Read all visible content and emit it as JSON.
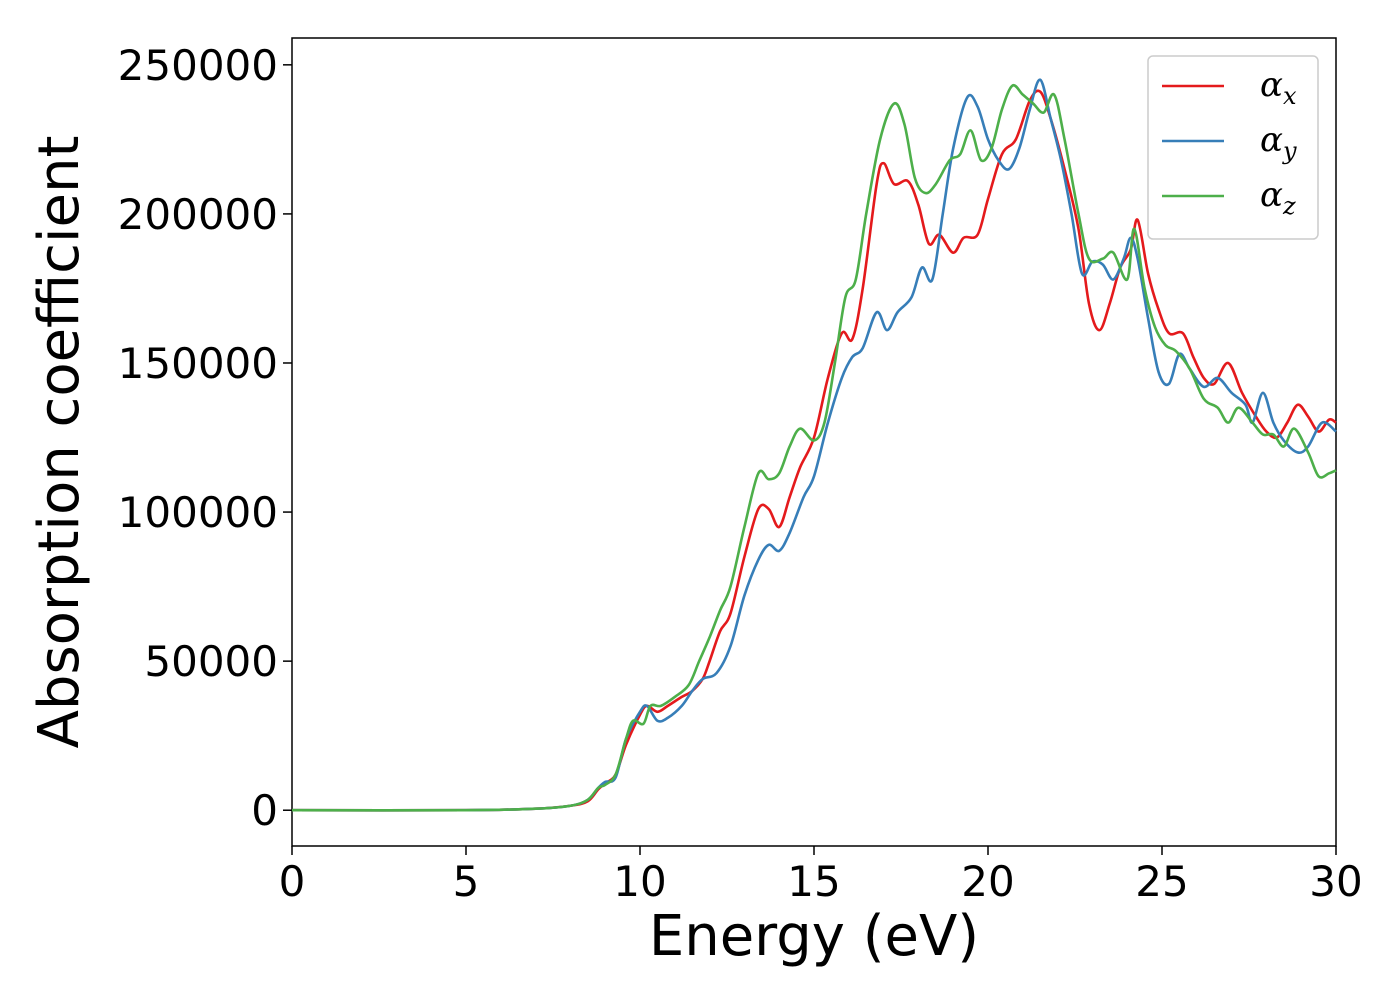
{
  "chart_data": {
    "type": "line",
    "title": "",
    "xlabel": "Energy (eV)",
    "ylabel": "Absorption coefficient",
    "xlim": [
      0,
      30
    ],
    "ylim": [
      -12000,
      259000
    ],
    "xticks": [
      0,
      5,
      10,
      15,
      20,
      25,
      30
    ],
    "yticks": [
      0,
      50000,
      100000,
      150000,
      200000,
      250000
    ],
    "grid": false,
    "legend_position": "top-right",
    "series": [
      {
        "name": "α",
        "subscript": "x",
        "color": "#e41a1c",
        "points": [
          [
            0,
            0
          ],
          [
            5,
            0
          ],
          [
            7,
            500
          ],
          [
            8,
            1500
          ],
          [
            8.5,
            3000
          ],
          [
            8.8,
            7000
          ],
          [
            9.0,
            9000
          ],
          [
            9.3,
            12000
          ],
          [
            9.6,
            22000
          ],
          [
            10.0,
            32000
          ],
          [
            10.2,
            35000
          ],
          [
            10.5,
            33000
          ],
          [
            10.8,
            35000
          ],
          [
            11.2,
            38000
          ],
          [
            11.5,
            40000
          ],
          [
            11.8,
            44000
          ],
          [
            12.0,
            50000
          ],
          [
            12.3,
            60000
          ],
          [
            12.6,
            66000
          ],
          [
            13.0,
            85000
          ],
          [
            13.4,
            101000
          ],
          [
            13.7,
            101000
          ],
          [
            14.0,
            95000
          ],
          [
            14.3,
            105000
          ],
          [
            14.6,
            115000
          ],
          [
            15.0,
            125000
          ],
          [
            15.4,
            145000
          ],
          [
            15.8,
            160000
          ],
          [
            16.1,
            158000
          ],
          [
            16.4,
            175000
          ],
          [
            16.8,
            210000
          ],
          [
            17.0,
            217000
          ],
          [
            17.3,
            210000
          ],
          [
            17.7,
            211000
          ],
          [
            18.0,
            203000
          ],
          [
            18.3,
            190000
          ],
          [
            18.6,
            193000
          ],
          [
            19.0,
            187000
          ],
          [
            19.3,
            192000
          ],
          [
            19.7,
            193000
          ],
          [
            20.0,
            205000
          ],
          [
            20.4,
            220000
          ],
          [
            20.8,
            225000
          ],
          [
            21.2,
            238000
          ],
          [
            21.5,
            241000
          ],
          [
            21.8,
            232000
          ],
          [
            22.2,
            215000
          ],
          [
            22.6,
            195000
          ],
          [
            22.9,
            170000
          ],
          [
            23.2,
            161000
          ],
          [
            23.5,
            170000
          ],
          [
            23.8,
            182000
          ],
          [
            24.1,
            188000
          ],
          [
            24.3,
            198000
          ],
          [
            24.6,
            180000
          ],
          [
            24.9,
            168000
          ],
          [
            25.2,
            160000
          ],
          [
            25.6,
            160000
          ],
          [
            25.9,
            152000
          ],
          [
            26.2,
            145000
          ],
          [
            26.5,
            143000
          ],
          [
            26.9,
            150000
          ],
          [
            27.3,
            140000
          ],
          [
            27.7,
            132000
          ],
          [
            28.0,
            127000
          ],
          [
            28.3,
            125000
          ],
          [
            28.6,
            130000
          ],
          [
            28.9,
            136000
          ],
          [
            29.2,
            132000
          ],
          [
            29.5,
            127000
          ],
          [
            29.8,
            131000
          ],
          [
            30.0,
            130000
          ]
        ]
      },
      {
        "name": "α",
        "subscript": "y",
        "color": "#377eb8",
        "points": [
          [
            0,
            0
          ],
          [
            5,
            0
          ],
          [
            7,
            500
          ],
          [
            8,
            1500
          ],
          [
            8.5,
            3500
          ],
          [
            8.8,
            7500
          ],
          [
            9.0,
            9500
          ],
          [
            9.3,
            11000
          ],
          [
            9.6,
            24000
          ],
          [
            10.0,
            33000
          ],
          [
            10.2,
            35000
          ],
          [
            10.5,
            30000
          ],
          [
            10.8,
            31000
          ],
          [
            11.2,
            35000
          ],
          [
            11.5,
            40000
          ],
          [
            11.8,
            44000
          ],
          [
            12.2,
            46000
          ],
          [
            12.6,
            55000
          ],
          [
            13.0,
            72000
          ],
          [
            13.4,
            84000
          ],
          [
            13.7,
            89000
          ],
          [
            14.0,
            87000
          ],
          [
            14.3,
            93000
          ],
          [
            14.7,
            105000
          ],
          [
            15.0,
            112000
          ],
          [
            15.4,
            130000
          ],
          [
            15.8,
            145000
          ],
          [
            16.1,
            152000
          ],
          [
            16.4,
            155000
          ],
          [
            16.8,
            167000
          ],
          [
            17.1,
            161000
          ],
          [
            17.4,
            167000
          ],
          [
            17.8,
            172000
          ],
          [
            18.1,
            182000
          ],
          [
            18.4,
            178000
          ],
          [
            18.7,
            200000
          ],
          [
            19.0,
            222000
          ],
          [
            19.4,
            239000
          ],
          [
            19.7,
            236000
          ],
          [
            20.0,
            225000
          ],
          [
            20.3,
            218000
          ],
          [
            20.6,
            215000
          ],
          [
            20.9,
            222000
          ],
          [
            21.2,
            235000
          ],
          [
            21.5,
            245000
          ],
          [
            21.8,
            232000
          ],
          [
            22.1,
            218000
          ],
          [
            22.4,
            200000
          ],
          [
            22.7,
            180000
          ],
          [
            23.0,
            184000
          ],
          [
            23.3,
            183000
          ],
          [
            23.6,
            178000
          ],
          [
            23.9,
            185000
          ],
          [
            24.1,
            192000
          ],
          [
            24.3,
            185000
          ],
          [
            24.6,
            165000
          ],
          [
            24.9,
            147000
          ],
          [
            25.2,
            143000
          ],
          [
            25.5,
            153000
          ],
          [
            25.8,
            148000
          ],
          [
            26.2,
            142000
          ],
          [
            26.6,
            145000
          ],
          [
            27.0,
            140000
          ],
          [
            27.4,
            136000
          ],
          [
            27.6,
            130000
          ],
          [
            27.9,
            140000
          ],
          [
            28.2,
            130000
          ],
          [
            28.5,
            124000
          ],
          [
            28.9,
            120000
          ],
          [
            29.2,
            122000
          ],
          [
            29.6,
            130000
          ],
          [
            30.0,
            127000
          ]
        ]
      },
      {
        "name": "α",
        "subscript": "z",
        "color": "#4daf4a",
        "points": [
          [
            0,
            0
          ],
          [
            5,
            0
          ],
          [
            7,
            500
          ],
          [
            8,
            1500
          ],
          [
            8.5,
            3500
          ],
          [
            8.8,
            7500
          ],
          [
            9.0,
            8500
          ],
          [
            9.3,
            12000
          ],
          [
            9.6,
            24000
          ],
          [
            9.8,
            30000
          ],
          [
            10.1,
            29000
          ],
          [
            10.3,
            35000
          ],
          [
            10.6,
            35000
          ],
          [
            11.0,
            38000
          ],
          [
            11.4,
            42000
          ],
          [
            11.7,
            50000
          ],
          [
            12.0,
            58000
          ],
          [
            12.3,
            67000
          ],
          [
            12.6,
            75000
          ],
          [
            13.0,
            95000
          ],
          [
            13.4,
            113000
          ],
          [
            13.7,
            111000
          ],
          [
            14.0,
            113000
          ],
          [
            14.3,
            122000
          ],
          [
            14.6,
            128000
          ],
          [
            15.0,
            124000
          ],
          [
            15.3,
            130000
          ],
          [
            15.6,
            150000
          ],
          [
            15.9,
            172000
          ],
          [
            16.2,
            178000
          ],
          [
            16.5,
            200000
          ],
          [
            16.9,
            225000
          ],
          [
            17.3,
            237000
          ],
          [
            17.6,
            230000
          ],
          [
            17.9,
            212000
          ],
          [
            18.2,
            207000
          ],
          [
            18.5,
            210000
          ],
          [
            18.9,
            218000
          ],
          [
            19.2,
            220000
          ],
          [
            19.5,
            228000
          ],
          [
            19.8,
            218000
          ],
          [
            20.1,
            222000
          ],
          [
            20.4,
            235000
          ],
          [
            20.7,
            243000
          ],
          [
            21.0,
            240000
          ],
          [
            21.3,
            237000
          ],
          [
            21.6,
            234000
          ],
          [
            21.9,
            240000
          ],
          [
            22.2,
            225000
          ],
          [
            22.6,
            200000
          ],
          [
            22.9,
            185000
          ],
          [
            23.3,
            185000
          ],
          [
            23.6,
            187000
          ],
          [
            24.0,
            178000
          ],
          [
            24.2,
            195000
          ],
          [
            24.5,
            175000
          ],
          [
            24.8,
            162000
          ],
          [
            25.1,
            156000
          ],
          [
            25.4,
            154000
          ],
          [
            25.8,
            148000
          ],
          [
            26.2,
            138000
          ],
          [
            26.6,
            135000
          ],
          [
            26.9,
            130000
          ],
          [
            27.2,
            135000
          ],
          [
            27.6,
            130000
          ],
          [
            27.9,
            126000
          ],
          [
            28.2,
            126000
          ],
          [
            28.5,
            122000
          ],
          [
            28.8,
            128000
          ],
          [
            29.2,
            120000
          ],
          [
            29.5,
            112000
          ],
          [
            29.8,
            113000
          ],
          [
            30.0,
            114000
          ]
        ]
      }
    ]
  }
}
